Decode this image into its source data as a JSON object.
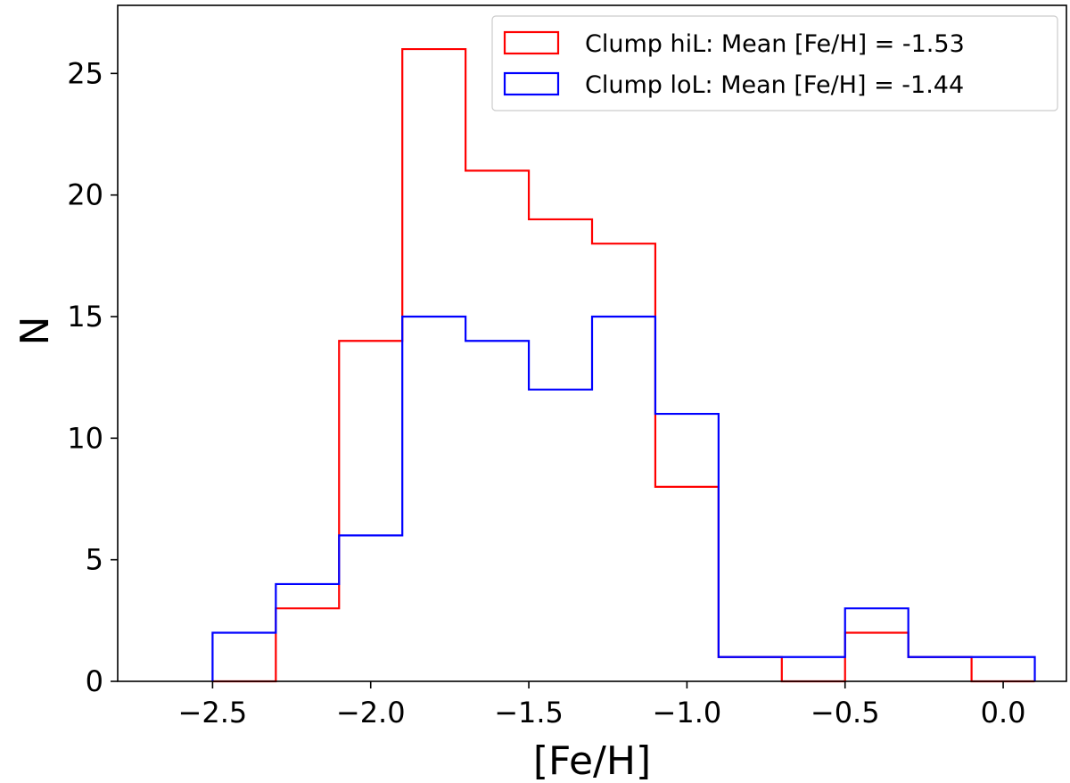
{
  "chart_data": {
    "type": "histogram",
    "title": "",
    "xlabel": "[Fe/H]",
    "ylabel": "N",
    "xlim": [
      -2.8,
      0.2
    ],
    "ylim": [
      0,
      27.8
    ],
    "xticks": [
      -2.5,
      -2.0,
      -1.5,
      -1.0,
      -0.5,
      0.0
    ],
    "xtick_labels": [
      "−2.5",
      "−2.0",
      "−1.5",
      "−1.0",
      "−0.5",
      "0.0"
    ],
    "yticks": [
      0,
      5,
      10,
      15,
      20,
      25
    ],
    "ytick_labels": [
      "0",
      "5",
      "10",
      "15",
      "20",
      "25"
    ],
    "grid": false,
    "legend_position": "top-right",
    "bin_edges": [
      -2.5,
      -2.3,
      -2.1,
      -1.9,
      -1.7,
      -1.5,
      -1.3,
      -1.1,
      -0.9,
      -0.7,
      -0.5,
      -0.3,
      -0.1,
      0.1
    ],
    "series": [
      {
        "name": "Clump hiL: Mean [Fe/H] = -1.53",
        "color": "#ff0000",
        "counts": [
          0,
          3,
          14,
          26,
          21,
          19,
          18,
          8,
          1,
          0,
          2,
          1,
          0
        ]
      },
      {
        "name": "Clump loL: Mean [Fe/H] = -1.44",
        "color": "#0000ff",
        "counts": [
          2,
          4,
          6,
          15,
          14,
          12,
          15,
          11,
          1,
          1,
          3,
          1,
          1
        ]
      }
    ]
  }
}
